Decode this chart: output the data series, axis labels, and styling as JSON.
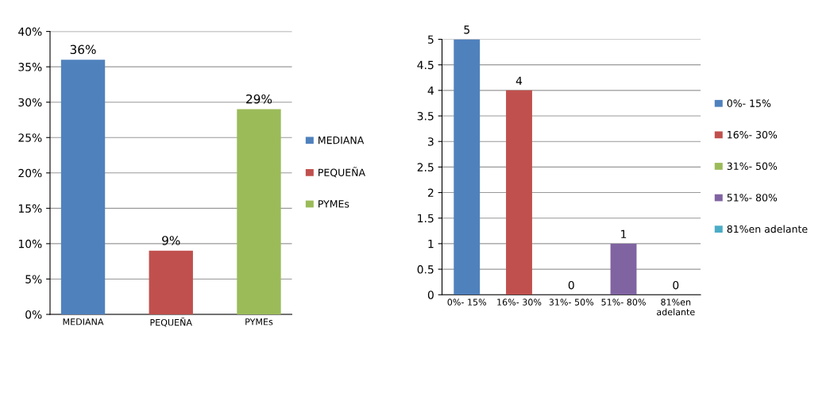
{
  "chart_data": [
    {
      "type": "bar",
      "stacked": true,
      "categories": [
        "MEDIANA",
        "PEQUEÑA",
        "PYMEs"
      ],
      "series": [
        {
          "name": "MEDIANA",
          "color": "#4f81bd",
          "values": [
            36,
            null,
            null
          ],
          "value_labels": [
            "36%",
            null,
            null
          ]
        },
        {
          "name": "PEQUEÑA",
          "color": "#c0504d",
          "values": [
            null,
            9,
            null
          ],
          "value_labels": [
            null,
            "9%",
            null
          ]
        },
        {
          "name": "PYMEs",
          "color": "#9bbb59",
          "values": [
            null,
            null,
            29
          ],
          "value_labels": [
            null,
            null,
            "29%"
          ]
        }
      ],
      "ylim": [
        0,
        40
      ],
      "yticks": [
        {
          "value": 0,
          "label": "0%"
        },
        {
          "value": 5,
          "label": "5%"
        },
        {
          "value": 10,
          "label": "10%"
        },
        {
          "value": 15,
          "label": "15%"
        },
        {
          "value": 20,
          "label": "20%"
        },
        {
          "value": 25,
          "label": "25%"
        },
        {
          "value": 30,
          "label": "30%"
        },
        {
          "value": 35,
          "label": "35%"
        },
        {
          "value": 40,
          "label": "40%"
        }
      ],
      "grid": "y",
      "legend": "right"
    },
    {
      "type": "bar",
      "stacked": true,
      "categories": [
        "0%- 15%",
        "16%- 30%",
        "31%- 50%",
        "51%- 80%",
        "81%en adelante"
      ],
      "series": [
        {
          "name": "0%- 15%",
          "color": "#4f81bd",
          "values": [
            5,
            null,
            null,
            null,
            null
          ]
        },
        {
          "name": "16%- 30%",
          "color": "#c0504d",
          "values": [
            null,
            4,
            null,
            null,
            null
          ]
        },
        {
          "name": "31%- 50%",
          "color": "#9bbb59",
          "values": [
            null,
            null,
            0,
            null,
            null
          ]
        },
        {
          "name": "51%- 80%",
          "color": "#8064a2",
          "values": [
            null,
            null,
            null,
            1,
            null
          ]
        },
        {
          "name": "81%en adelante",
          "color": "#4bacc6",
          "values": [
            null,
            null,
            null,
            null,
            0
          ]
        }
      ],
      "data_labels": true,
      "ylim": [
        0,
        5
      ],
      "yticks": [
        0,
        0.5,
        1,
        1.5,
        2,
        2.5,
        3,
        3.5,
        4,
        4.5,
        5
      ],
      "grid": "y",
      "legend": "right"
    }
  ]
}
